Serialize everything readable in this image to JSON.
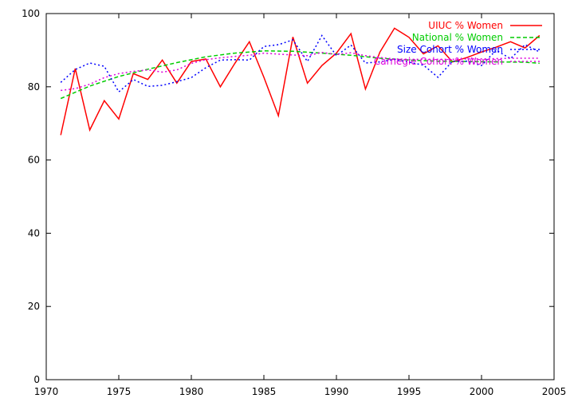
{
  "chart_data": {
    "type": "line",
    "title": "",
    "xlabel": "",
    "ylabel": "",
    "xlim": [
      1970,
      2005
    ],
    "ylim": [
      0,
      100
    ],
    "xticks": [
      1970,
      1975,
      1980,
      1985,
      1990,
      1995,
      2000,
      2005
    ],
    "yticks": [
      0,
      20,
      40,
      60,
      80,
      100
    ],
    "grid": false,
    "legend_position": "top-right",
    "series": [
      {
        "name": "UIUC % Women",
        "color": "#ff0000",
        "dash": "solid",
        "x": [
          1971,
          1972,
          1973,
          1974,
          1975,
          1976,
          1977,
          1978,
          1979,
          1980,
          1981,
          1982,
          1983,
          1984,
          1985,
          1986,
          1987,
          1988,
          1989,
          1990,
          1991,
          1992,
          1993,
          1994,
          1995,
          1996,
          1997,
          1998,
          1999,
          2000,
          2001,
          2002,
          2003,
          2004
        ],
        "y": [
          66.8,
          85.0,
          68.2,
          76.2,
          71.2,
          83.6,
          82.0,
          87.3,
          81.0,
          86.9,
          87.6,
          80.0,
          86.4,
          92.3,
          82.6,
          72.1,
          93.6,
          81.0,
          85.8,
          89.2,
          94.5,
          79.4,
          89.5,
          96.0,
          93.5,
          89.0,
          91.2,
          86.8,
          88.0,
          89.5,
          90.8,
          92.3,
          90.6,
          94.0
        ]
      },
      {
        "name": "National % Women",
        "color": "#00cc00",
        "dash": "dashed",
        "x": [
          1971,
          1973,
          1975,
          1977,
          1979,
          1981,
          1983,
          1985,
          1987,
          1989,
          1991,
          1993,
          1995,
          1997,
          1999,
          2001,
          2003,
          2004
        ],
        "y": [
          76.8,
          80.2,
          82.8,
          84.8,
          86.6,
          88.2,
          89.2,
          89.8,
          89.7,
          89.2,
          88.6,
          87.8,
          87.3,
          87.0,
          86.9,
          86.8,
          86.7,
          86.4
        ]
      },
      {
        "name": "Size Cohort % Women",
        "color": "#0000ff",
        "dash": "dotted",
        "x": [
          1971,
          1972,
          1973,
          1974,
          1975,
          1976,
          1977,
          1978,
          1979,
          1980,
          1981,
          1982,
          1983,
          1984,
          1985,
          1986,
          1987,
          1988,
          1989,
          1990,
          1991,
          1992,
          1993,
          1994,
          1995,
          1996,
          1997,
          1998,
          1999,
          2000,
          2001,
          2002,
          2003,
          2004
        ],
        "y": [
          81.2,
          84.7,
          86.5,
          85.6,
          78.6,
          82.0,
          80.1,
          80.4,
          81.4,
          82.5,
          85.2,
          87.3,
          87.4,
          87.3,
          91.0,
          91.5,
          92.8,
          86.9,
          94.0,
          88.5,
          91.4,
          86.5,
          86.8,
          87.5,
          86.7,
          85.9,
          82.6,
          87.0,
          87.0,
          85.8,
          90.0,
          87.7,
          91.5,
          89.5
        ]
      },
      {
        "name": "Carnegie Cohort % Women",
        "color": "#dd00dd",
        "dash": "dotted",
        "x": [
          1971,
          1972,
          1973,
          1974,
          1975,
          1976,
          1977,
          1978,
          1979,
          1980,
          1981,
          1982,
          1983,
          1984,
          1985,
          1986,
          1987,
          1988,
          1989,
          1990,
          1991,
          1992,
          1993,
          1994,
          1995,
          1996,
          1997,
          1998,
          1999,
          2000,
          2001,
          2002,
          2003,
          2004
        ],
        "y": [
          79.0,
          79.5,
          80.7,
          82.5,
          83.6,
          84.2,
          84.6,
          84.0,
          84.6,
          86.4,
          87.4,
          87.9,
          88.3,
          88.6,
          89.2,
          88.9,
          88.7,
          88.5,
          89.4,
          88.8,
          89.3,
          88.5,
          88.0,
          87.6,
          87.5,
          87.5,
          87.5,
          87.5,
          87.6,
          87.6,
          87.7,
          87.8,
          87.8,
          87.8
        ]
      }
    ]
  }
}
